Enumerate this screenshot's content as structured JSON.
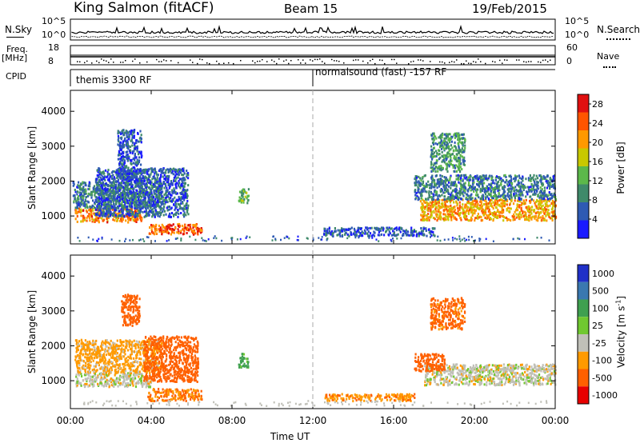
{
  "header": {
    "station_title": "King Salmon (fitACF)",
    "beam": "Beam 15",
    "date": "19/Feb/2015"
  },
  "top_panels": {
    "nsky_label": "N.Sky",
    "nsky_ticks": [
      "10^5",
      "10^0"
    ],
    "nsearch_label": "N.Search",
    "nsearch_ticks": [
      "10^5",
      "10^0"
    ],
    "freq_label": "Freq.",
    "freq_unit": "[MHz]",
    "freq_ticks": [
      "18",
      "8"
    ],
    "nave_label": "Nave",
    "nave_ticks": [
      "60",
      "0"
    ],
    "cpid_label": "CPID",
    "cpid_modes": [
      "themis 3300 RF",
      "normalsound (fast) -157 RF"
    ]
  },
  "colors": {
    "power": [
      "#1a1aff",
      "#2e5ab3",
      "#3f8a6a",
      "#5cb84a",
      "#c8c800",
      "#ff9900",
      "#ff5500",
      "#e01010"
    ],
    "velocity": [
      "#2030c8",
      "#3a78b0",
      "#3fa050",
      "#70c830",
      "#c0c0b8",
      "#ff9a00",
      "#ff6000",
      "#e80000"
    ]
  },
  "chart_data": [
    {
      "type": "heatmap",
      "title": "",
      "xlabel": "Time UT",
      "ylabel": "Slant Range [km]",
      "x_ticks": [
        "00:00",
        "04:00",
        "08:00",
        "12:00",
        "16:00",
        "20:00",
        "00:00"
      ],
      "xlim_hours": [
        0,
        24
      ],
      "ylim": [
        200,
        4600
      ],
      "y_ticks": [
        1000,
        2000,
        3000,
        4000
      ],
      "colorbar_label": "Power [dB]",
      "colorbar_ticks": [
        4,
        8,
        12,
        16,
        20,
        24,
        28
      ],
      "colorbar_range": [
        0,
        30
      ],
      "regions": [
        {
          "t": [
            0.2,
            3.5
          ],
          "r": [
            850,
            1250
          ],
          "value": 22
        },
        {
          "t": [
            0.1,
            4.5
          ],
          "r": [
            1250,
            2000
          ],
          "value": 8
        },
        {
          "t": [
            1.2,
            5.8
          ],
          "r": [
            1000,
            2400
          ],
          "value": 6
        },
        {
          "t": [
            3.8,
            6.5
          ],
          "r": [
            500,
            800
          ],
          "value": 24
        },
        {
          "t": [
            2.3,
            3.5
          ],
          "r": [
            2000,
            3500
          ],
          "value": 5
        },
        {
          "t": [
            8.3,
            8.8
          ],
          "r": [
            1400,
            1800
          ],
          "value": 12
        },
        {
          "t": [
            17.3,
            24.0
          ],
          "r": [
            900,
            1500
          ],
          "value": 20
        },
        {
          "t": [
            17.0,
            24.0
          ],
          "r": [
            1500,
            2200
          ],
          "value": 8
        },
        {
          "t": [
            17.8,
            19.5
          ],
          "r": [
            2300,
            3400
          ],
          "value": 10
        },
        {
          "t": [
            12.5,
            18.0
          ],
          "r": [
            450,
            700
          ],
          "value": 6
        }
      ]
    },
    {
      "type": "heatmap",
      "title": "",
      "xlabel": "Time UT",
      "ylabel": "Slant Range [km]",
      "x_ticks": [
        "00:00",
        "04:00",
        "08:00",
        "12:00",
        "16:00",
        "20:00",
        "00:00"
      ],
      "xlim_hours": [
        0,
        24
      ],
      "ylim": [
        200,
        4600
      ],
      "y_ticks": [
        1000,
        2000,
        3000,
        4000
      ],
      "colorbar_label": "Velocity [m s-1]",
      "colorbar_ticks": [
        "1000",
        "500",
        "100",
        "25",
        "-25",
        "-100",
        "-500",
        "-1000"
      ],
      "regions": [
        {
          "t": [
            0.2,
            4.0
          ],
          "r": [
            850,
            1250
          ],
          "value": 0
        },
        {
          "t": [
            0.2,
            4.5
          ],
          "r": [
            1250,
            2200
          ],
          "value": -50
        },
        {
          "t": [
            3.6,
            6.3
          ],
          "r": [
            1000,
            2300
          ],
          "value": -300
        },
        {
          "t": [
            3.8,
            6.5
          ],
          "r": [
            450,
            800
          ],
          "value": -100
        },
        {
          "t": [
            2.5,
            3.4
          ],
          "r": [
            2600,
            3500
          ],
          "value": -300
        },
        {
          "t": [
            8.3,
            8.8
          ],
          "r": [
            1400,
            1800
          ],
          "value": 80
        },
        {
          "t": [
            17.5,
            24.0
          ],
          "r": [
            900,
            1500
          ],
          "value": 0
        },
        {
          "t": [
            17.0,
            18.5
          ],
          "r": [
            1300,
            1800
          ],
          "value": -200
        },
        {
          "t": [
            17.8,
            19.5
          ],
          "r": [
            2500,
            3400
          ],
          "value": -150
        },
        {
          "t": [
            12.5,
            17.0
          ],
          "r": [
            450,
            650
          ],
          "value": -80
        }
      ]
    }
  ]
}
